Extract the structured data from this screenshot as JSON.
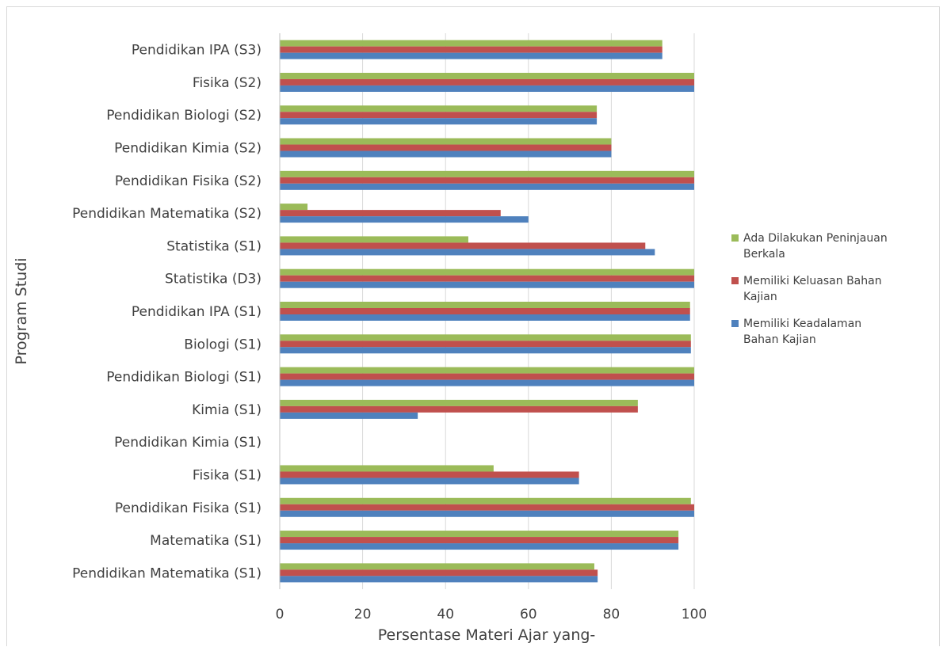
{
  "chart_data": {
    "type": "bar",
    "orientation": "horizontal",
    "categories": [
      "Pendidikan IPA (S3)",
      "Fisika (S2)",
      "Pendidikan Biologi (S2)",
      "Pendidikan Kimia (S2)",
      "Pendidikan Fisika (S2)",
      "Pendidikan Matematika (S2)",
      "Statistika (S1)",
      "Statistika (D3)",
      "Pendidikan IPA (S1)",
      "Biologi (S1)",
      "Pendidikan Biologi (S1)",
      "Kimia (S1)",
      "Pendidikan Kimia (S1)",
      "Fisika (S1)",
      "Pendidikan Fisika (S1)",
      "Matematika (S1)",
      "Pendidikan Matematika (S1)"
    ],
    "series": [
      {
        "name": "Ada Dilakukan Peninjauan Berkala",
        "color": "#9BBB59",
        "values": [
          92.3,
          100,
          76.5,
          80,
          100,
          6.7,
          45.5,
          100,
          99,
          99.2,
          100,
          86.4,
          0,
          51.6,
          99.2,
          96.2,
          75.9
        ]
      },
      {
        "name": "Memiliki Keluasan Bahan Kajian",
        "color": "#C0504D",
        "values": [
          92.3,
          100,
          76.5,
          80,
          100,
          53.3,
          88.2,
          100,
          99,
          99.2,
          100,
          86.4,
          0,
          72.2,
          100,
          96.2,
          76.7
        ]
      },
      {
        "name": "Memiliki Keadalaman Bahan Kajian",
        "color": "#4F81BD",
        "values": [
          92.3,
          100,
          76.5,
          80,
          100,
          60,
          90.5,
          100,
          99,
          99.2,
          100,
          33.3,
          0,
          72.2,
          100,
          96.2,
          76.7
        ]
      }
    ],
    "legend": [
      {
        "line1": "Ada Dilakukan Peninjauan",
        "line2": "Berkala",
        "color": "#9BBB59"
      },
      {
        "line1": "Memiliki Keluasan Bahan",
        "line2": "Kajian",
        "color": "#C0504D"
      },
      {
        "line1": "Memiliki Keadalaman",
        "line2": "Bahan Kajian",
        "color": "#4F81BD"
      }
    ],
    "x_ticks": [
      "0",
      "20",
      "40",
      "60",
      "80",
      "100"
    ],
    "xlim": [
      0,
      100
    ],
    "xlabel": "Persentase Materi Ajar yang-",
    "ylabel": "Program Studi",
    "grid": "vertical",
    "legend_position": "right"
  }
}
